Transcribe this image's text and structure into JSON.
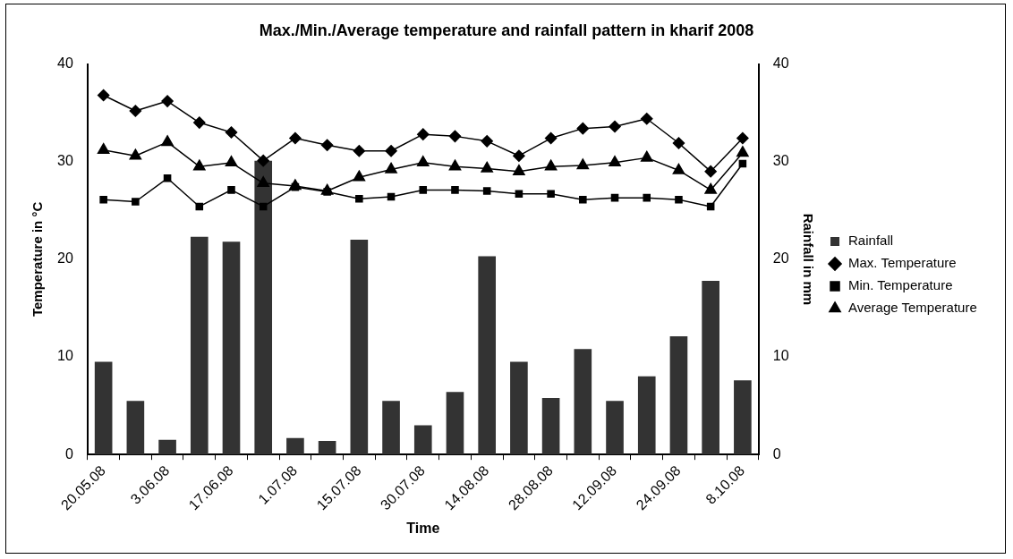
{
  "chart_data": {
    "type": "bar",
    "title": "Max./Min./Average temperature and rainfall pattern in kharif 2008",
    "xlabel": "Time",
    "ylabel": "Temperature in °C",
    "y2label": "Rainfall in mm",
    "categories": [
      "20.05.08",
      null,
      "3.06.08",
      null,
      "17.06.08",
      null,
      "1.07.08",
      null,
      "15.07.08",
      null,
      "30.07.08",
      null,
      "14.08.08",
      null,
      "28.08.08",
      null,
      "12.09.08",
      null,
      "24.09.08",
      null,
      "8.10.08"
    ],
    "series": [
      {
        "name": "Rainfall",
        "axis": "y2",
        "color": "#333333",
        "values": [
          9.5,
          5.5,
          1.5,
          22.3,
          21.8,
          30.1,
          1.7,
          1.4,
          22.0,
          5.5,
          3.0,
          6.4,
          20.3,
          9.5,
          5.8,
          10.8,
          5.5,
          8.0,
          12.1,
          17.8,
          7.6
        ]
      },
      {
        "name": "Max. Temperature",
        "type": "line",
        "marker": "diamond",
        "color": "#000000",
        "values": [
          36.8,
          35.2,
          36.2,
          34.0,
          33.0,
          30.1,
          32.4,
          31.7,
          31.1,
          31.1,
          32.8,
          32.6,
          32.1,
          30.6,
          32.4,
          33.4,
          33.6,
          34.4,
          31.9,
          29.0,
          32.4
        ]
      },
      {
        "name": "Min. Temperature",
        "type": "line",
        "marker": "square",
        "color": "#000000",
        "values": [
          26.1,
          25.9,
          28.3,
          25.4,
          27.1,
          25.4,
          27.4,
          26.9,
          26.2,
          26.4,
          27.1,
          27.1,
          27.0,
          26.7,
          26.7,
          26.1,
          26.3,
          26.3,
          26.1,
          25.4,
          29.8
        ]
      },
      {
        "name": "Average Temperature",
        "type": "line",
        "marker": "triangle",
        "color": "#000000",
        "values": [
          31.2,
          30.6,
          32.0,
          29.5,
          29.9,
          27.8,
          27.5,
          27.0,
          28.4,
          29.2,
          29.9,
          29.5,
          29.3,
          29.0,
          29.5,
          29.6,
          29.9,
          30.4,
          29.1,
          27.1,
          30.9
        ]
      }
    ],
    "ylim": [
      0,
      40
    ],
    "yticks": [
      0,
      10,
      20,
      30,
      40
    ],
    "y2lim": [
      0,
      40
    ],
    "y2ticks": [
      0,
      10,
      20,
      30,
      40
    ],
    "grid": false,
    "legend": "right"
  }
}
